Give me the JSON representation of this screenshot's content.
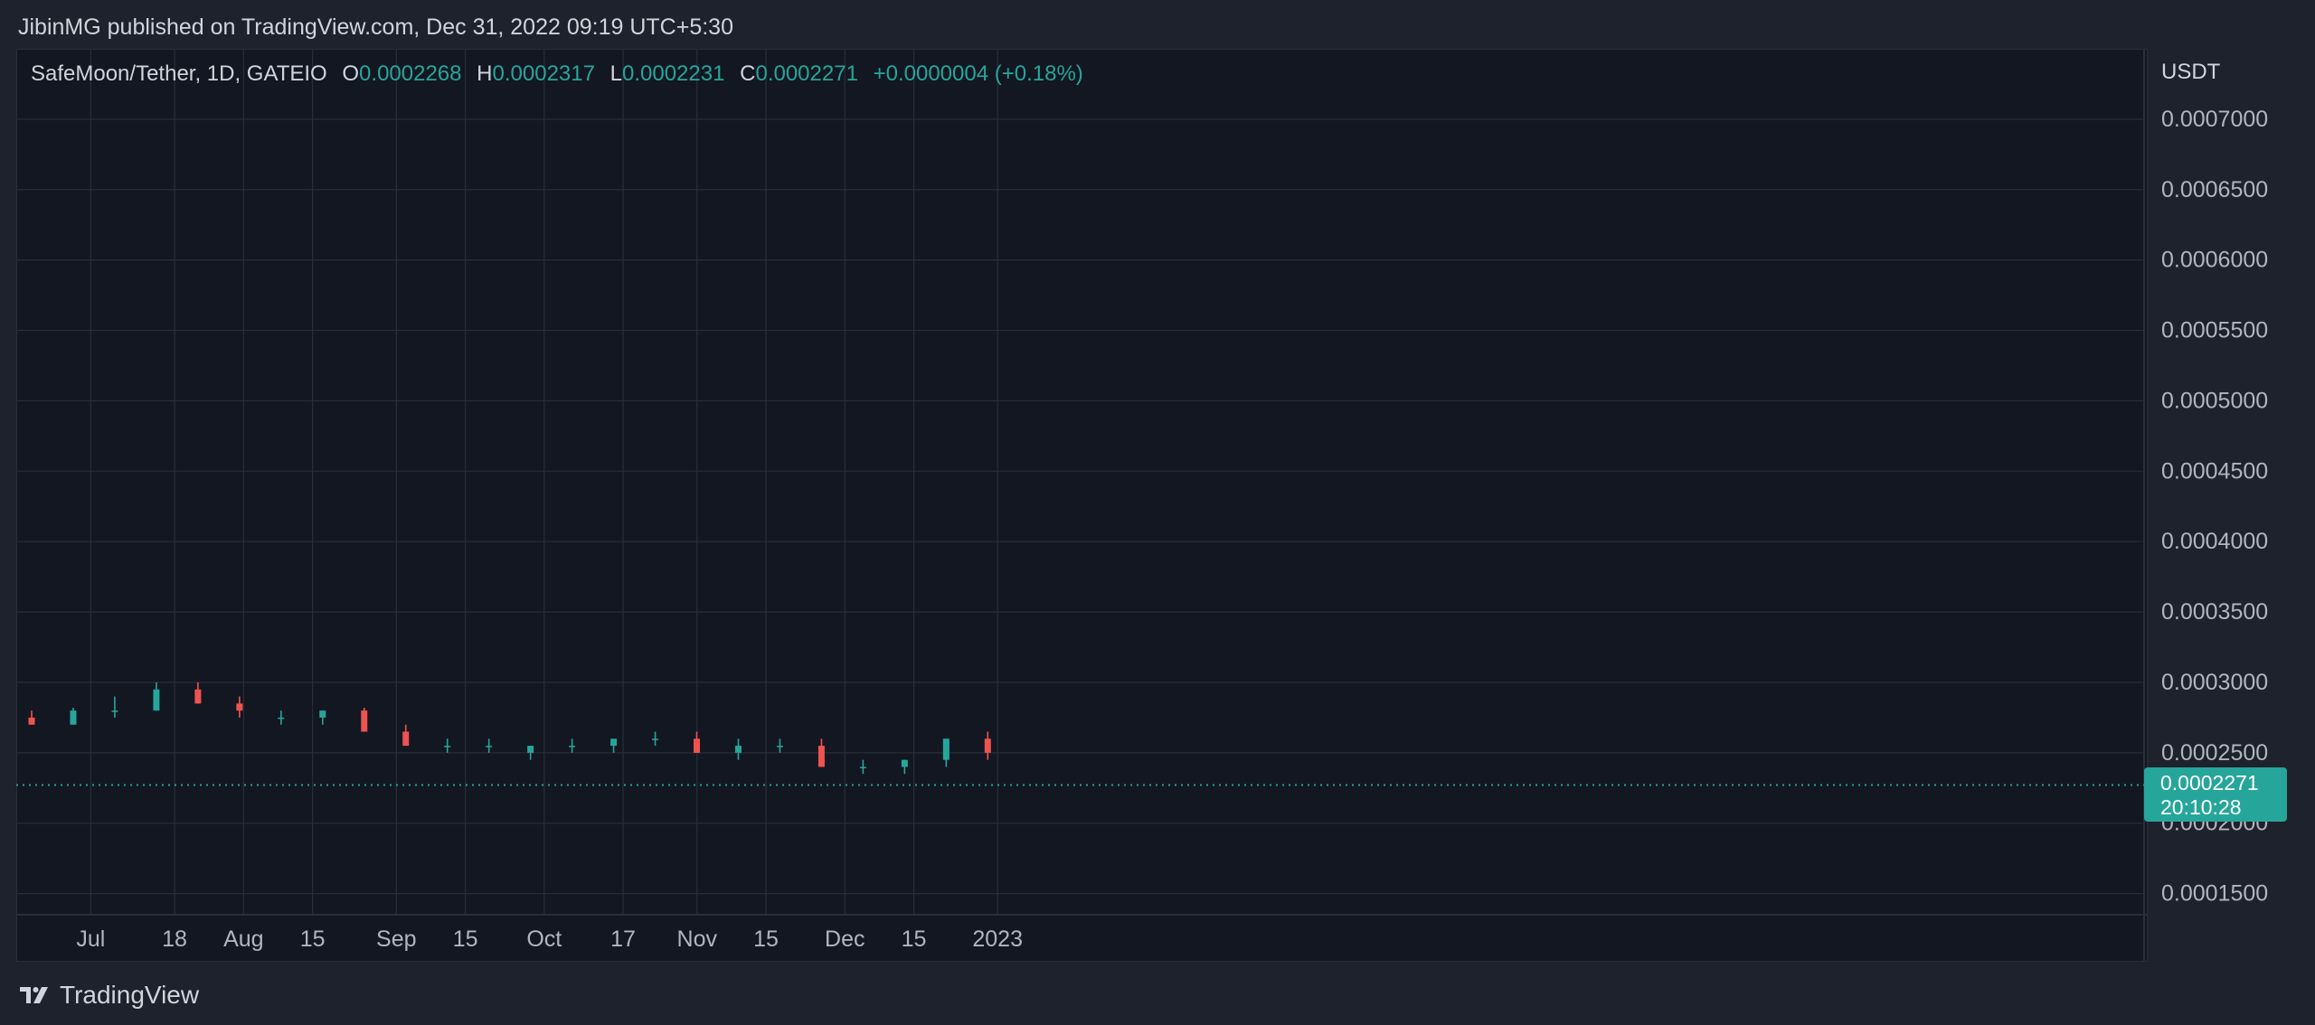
{
  "header": {
    "publisher": "JibinMG published on TradingView.com, Dec 31, 2022 09:19 UTC+5:30"
  },
  "legend": {
    "symbol": "SafeMoon/Tether, 1D, GATEIO",
    "open_label": "O",
    "open": "0.0002268",
    "high_label": "H",
    "high": "0.0002317",
    "low_label": "L",
    "low": "0.0002231",
    "close_label": "C",
    "close": "0.0002271",
    "change": "+0.0000004 (+0.18%)"
  },
  "price_axis": {
    "currency": "USDT"
  },
  "last_price": {
    "value": "0.0002271",
    "countdown": "20:10:28"
  },
  "footer": {
    "brand": "TradingView"
  },
  "colors": {
    "up": "#26a69a",
    "down": "#ef5350",
    "background": "#131722",
    "grid": "#2a2e39"
  },
  "chart_data": {
    "type": "candlestick",
    "interval": "1D",
    "y_ticks": [
      "0.0001500",
      "0.0002000",
      "0.0002500",
      "0.0003000",
      "0.0003500",
      "0.0004000",
      "0.0004500",
      "0.0005000",
      "0.0005500",
      "0.0006000",
      "0.0006500",
      "0.0007000"
    ],
    "y_range": [
      0.000135,
      0.00075
    ],
    "x_ticks": [
      {
        "label": "Jul",
        "date": "2022-07-01"
      },
      {
        "label": "18",
        "date": "2022-07-18"
      },
      {
        "label": "Aug",
        "date": "2022-08-01"
      },
      {
        "label": "15",
        "date": "2022-08-15"
      },
      {
        "label": "Sep",
        "date": "2022-09-01"
      },
      {
        "label": "15",
        "date": "2022-09-15"
      },
      {
        "label": "Oct",
        "date": "2022-10-01"
      },
      {
        "label": "17",
        "date": "2022-10-17"
      },
      {
        "label": "Nov",
        "date": "2022-11-01"
      },
      {
        "label": "15",
        "date": "2022-11-15"
      },
      {
        "label": "Dec",
        "date": "2022-12-01"
      },
      {
        "label": "15",
        "date": "2022-12-15"
      },
      {
        "label": "2023",
        "date": "2023-01-01"
      }
    ],
    "first_date": "2022-06-19",
    "candles": [
      [
        0.000275,
        0.00028,
        0.00027,
        0.00027
      ],
      [
        0.00027,
        0.000282,
        0.00027,
        0.00028
      ],
      [
        0.00028,
        0.00029,
        0.000275,
        0.00028
      ],
      [
        0.00028,
        0.0003,
        0.00028,
        0.000295
      ],
      [
        0.000295,
        0.0003,
        0.000285,
        0.000285
      ],
      [
        0.000285,
        0.00029,
        0.000275,
        0.00028
      ],
      [
        0.000275,
        0.00028,
        0.00027,
        0.000275
      ],
      [
        0.000275,
        0.00028,
        0.00027,
        0.00028
      ],
      [
        0.00028,
        0.000282,
        0.000265,
        0.000265
      ],
      [
        0.000265,
        0.00027,
        0.000255,
        0.000255
      ],
      [
        0.000255,
        0.00026,
        0.00025,
        0.000255
      ],
      [
        0.000255,
        0.00026,
        0.00025,
        0.000255
      ],
      [
        0.00025,
        0.000255,
        0.000245,
        0.000255
      ],
      [
        0.000255,
        0.00026,
        0.00025,
        0.000255
      ],
      [
        0.000255,
        0.00026,
        0.00025,
        0.00026
      ],
      [
        0.00026,
        0.000265,
        0.000255,
        0.00026
      ],
      [
        0.00026,
        0.000265,
        0.00025,
        0.00025
      ],
      [
        0.00025,
        0.00026,
        0.000245,
        0.000255
      ],
      [
        0.000255,
        0.00026,
        0.00025,
        0.000255
      ],
      [
        0.000255,
        0.00026,
        0.00024,
        0.00024
      ],
      [
        0.00024,
        0.000245,
        0.000235,
        0.00024
      ],
      [
        0.00024,
        0.000245,
        0.000235,
        0.000245
      ],
      [
        0.000245,
        0.00026,
        0.00024,
        0.00026
      ],
      [
        0.00026,
        0.000265,
        0.000245,
        0.00025
      ]
    ]
  }
}
